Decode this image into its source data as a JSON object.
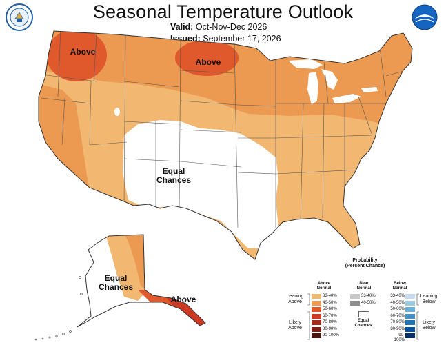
{
  "title": "Seasonal Temperature Outlook",
  "valid_label": "Valid:",
  "valid_value": "Oct-Nov-Dec 2026",
  "issued_label": "Issued:",
  "issued_value": "September 17, 2026",
  "logos": {
    "left": "commerce-seal-icon",
    "right": "noaa-logo-icon"
  },
  "map_labels": {
    "above_nw": "Above",
    "above_n": "Above",
    "equal_chances": "Equal\nChances",
    "equal_chances_ak": "Equal\nChances",
    "above_ak": "Above"
  },
  "colors": {
    "above_33_40": "#f2b872",
    "above_40_50": "#ec9a51",
    "above_50_60": "#e0592d",
    "above_60_70": "#cc3a24",
    "above_70_80": "#a52a1c",
    "above_80_90": "#7e1e12",
    "above_90_100": "#4a130b",
    "near_33_40": "#c8c8c8",
    "near_40_50": "#8e8e8e",
    "below_33_40": "#c6dbef",
    "below_40_50": "#9ecae1",
    "below_50_60": "#6baed6",
    "below_60_70": "#4292c6",
    "below_70_80": "#2171b5",
    "below_80_90": "#08519c",
    "below_90_100": "#08306b",
    "equal": "#ffffff",
    "boundary": "#555555"
  },
  "legend": {
    "title": "Probability\n(Percent Chance)",
    "above_header": "Above\nNormal",
    "near_header": "Near\nNormal",
    "below_header": "Below\nNormal",
    "equal_label": "Equal\nChances",
    "leaning_above": "Leaning\nAbove",
    "likely_above": "Likely\nAbove",
    "leaning_below": "Leaning\nBelow",
    "likely_below": "Likely\nBelow",
    "above_ranges": [
      "33-40%",
      "40-50%",
      "50-60%",
      "60-70%",
      "70-80%",
      "80-90%",
      "90-100%"
    ],
    "near_ranges": [
      "33-40%",
      "40-50%"
    ],
    "below_ranges": [
      "33-40%",
      "40-50%",
      "50-60%",
      "60-70%",
      "70-80%",
      "80-90%",
      "90-100%"
    ]
  }
}
